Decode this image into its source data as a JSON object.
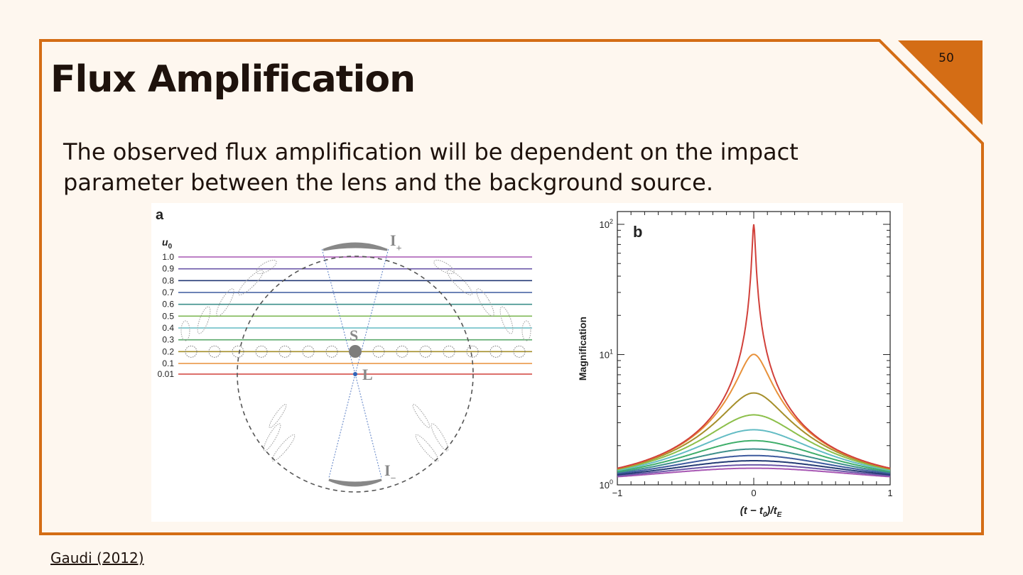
{
  "slide": {
    "number": "50",
    "title": "Flux Amplification",
    "body": "The observed flux amplification will be dependent on the impact parameter between the lens and the background source.",
    "citation": "Gaudi (2012)",
    "accent_color": "#d46d15",
    "background_color": "#fef7ef"
  },
  "figure": {
    "panel_a": {
      "label": "a",
      "u0_label": "u",
      "u0_subscript": "0",
      "u0_values": [
        1.0,
        0.9,
        0.8,
        0.7,
        0.6,
        0.5,
        0.4,
        0.3,
        0.2,
        0.1,
        0.01
      ],
      "u0_tick_labels": [
        "1.0",
        "0.9",
        "0.8",
        "0.7",
        "0.6",
        "0.5",
        "0.4",
        "0.3",
        "0.2",
        "0.1",
        "0.01"
      ],
      "line_colors": [
        "#a757b3",
        "#6b57a8",
        "#243a75",
        "#3d5a9e",
        "#3d8f8b",
        "#7fb855",
        "#63bcc4",
        "#5aa86a",
        "#a58f2b",
        "#e8913a",
        "#d1403a"
      ],
      "source_label": "S",
      "lens_label": "L",
      "image_plus_label": "I",
      "image_plus_subscript": "+",
      "image_minus_label": "I",
      "image_minus_subscript": "−"
    },
    "panel_b": {
      "label": "b"
    }
  },
  "chart_data": {
    "type": "line",
    "title": "",
    "xlabel": "(t − t0)/tE",
    "ylabel": "Magnification",
    "x_tick_labels": [
      "−1",
      "0",
      "1"
    ],
    "y_tick_labels": [
      "10",
      "10",
      "10"
    ],
    "y_tick_exponents": [
      "0",
      "1",
      "2"
    ],
    "xlim": [
      -1,
      1
    ],
    "ylim": [
      1,
      100
    ],
    "y_scale": "log",
    "grid": false,
    "legend": "none",
    "series": [
      {
        "u0": 0.01,
        "color": "#d1403a",
        "x": [
          -1,
          -0.5,
          -0.2,
          -0.1,
          -0.05,
          0,
          0.05,
          0.1,
          0.2,
          0.5,
          1
        ],
        "y": [
          1.06,
          1.59,
          5.0,
          10.0,
          19.9,
          100.0,
          19.9,
          10.0,
          5.0,
          1.59,
          1.06
        ]
      },
      {
        "u0": 0.1,
        "color": "#e8913a",
        "x": [
          -1,
          -0.5,
          -0.2,
          -0.1,
          0,
          0.1,
          0.2,
          0.5,
          1
        ],
        "y": [
          1.06,
          1.56,
          4.5,
          7.1,
          10.0,
          7.1,
          4.5,
          1.56,
          1.06
        ]
      },
      {
        "u0": 0.2,
        "color": "#a58f2b",
        "x": [
          -1,
          -0.5,
          -0.2,
          -0.1,
          0,
          0.1,
          0.2,
          0.5,
          1
        ],
        "y": [
          1.06,
          1.51,
          3.6,
          4.6,
          5.1,
          4.6,
          3.6,
          1.51,
          1.06
        ]
      },
      {
        "u0": 0.3,
        "color": "#8cbf4a",
        "x": [
          -1,
          -0.5,
          -0.2,
          0,
          0.2,
          0.5,
          1
        ],
        "y": [
          1.06,
          1.47,
          2.8,
          3.4,
          2.8,
          1.47,
          1.06
        ]
      },
      {
        "u0": 0.4,
        "color": "#63bcc4",
        "x": [
          -1,
          -0.5,
          -0.2,
          0,
          0.2,
          0.5,
          1
        ],
        "y": [
          1.05,
          1.41,
          2.2,
          2.6,
          2.2,
          1.41,
          1.05
        ]
      },
      {
        "u0": 0.5,
        "color": "#3fae6a",
        "x": [
          -1,
          -0.5,
          -0.2,
          0,
          0.2,
          0.5,
          1
        ],
        "y": [
          1.05,
          1.35,
          1.9,
          2.2,
          1.9,
          1.35,
          1.05
        ]
      },
      {
        "u0": 0.6,
        "color": "#3d8f8b",
        "x": [
          -1,
          -0.5,
          -0.2,
          0,
          0.2,
          0.5,
          1
        ],
        "y": [
          1.04,
          1.3,
          1.69,
          1.88,
          1.69,
          1.3,
          1.04
        ]
      },
      {
        "u0": 0.7,
        "color": "#3d5a9e",
        "x": [
          -1,
          -0.5,
          -0.2,
          0,
          0.2,
          0.5,
          1
        ],
        "y": [
          1.04,
          1.25,
          1.51,
          1.65,
          1.51,
          1.25,
          1.04
        ]
      },
      {
        "u0": 0.8,
        "color": "#243a75",
        "x": [
          -1,
          -0.5,
          -0.2,
          0,
          0.2,
          0.5,
          1
        ],
        "y": [
          1.03,
          1.2,
          1.39,
          1.49,
          1.39,
          1.2,
          1.03
        ]
      },
      {
        "u0": 0.9,
        "color": "#6b57a8",
        "x": [
          -1,
          -0.5,
          -0.2,
          0,
          0.2,
          0.5,
          1
        ],
        "y": [
          1.03,
          1.16,
          1.3,
          1.37,
          1.3,
          1.16,
          1.03
        ]
      },
      {
        "u0": 1.0,
        "color": "#a757b3",
        "x": [
          -1,
          -0.5,
          -0.2,
          0,
          0.2,
          0.5,
          1
        ],
        "y": [
          1.02,
          1.13,
          1.23,
          1.27,
          1.23,
          1.13,
          1.02
        ]
      }
    ]
  }
}
